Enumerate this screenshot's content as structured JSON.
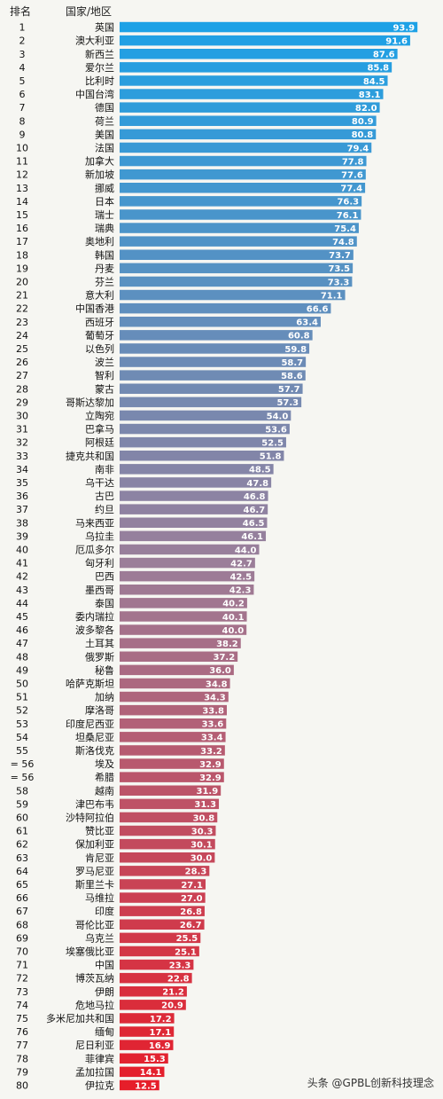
{
  "chart_data": {
    "type": "bar",
    "orientation": "horizontal",
    "header": {
      "rank": "排名",
      "country": "国家/地区"
    },
    "xlim": [
      0,
      100
    ],
    "colors": {
      "top": "#1da1e6",
      "middle": "#9a7f9a",
      "bottom": "#e61e2a"
    },
    "rows": [
      {
        "rank": "1",
        "name": "英国",
        "value": 93.9,
        "label": "93.9"
      },
      {
        "rank": "2",
        "name": "澳大利亚",
        "value": 91.6,
        "label": "91.6"
      },
      {
        "rank": "3",
        "name": "新西兰",
        "value": 87.6,
        "label": "87.6"
      },
      {
        "rank": "4",
        "name": "爱尔兰",
        "value": 85.8,
        "label": "85.8"
      },
      {
        "rank": "5",
        "name": "比利时",
        "value": 84.5,
        "label": "84.5"
      },
      {
        "rank": "6",
        "name": "中国台湾",
        "value": 83.1,
        "label": "83.1"
      },
      {
        "rank": "7",
        "name": "德国",
        "value": 82.0,
        "label": "82.0"
      },
      {
        "rank": "8",
        "name": "荷兰",
        "value": 80.9,
        "label": "80.9"
      },
      {
        "rank": "9",
        "name": "美国",
        "value": 80.8,
        "label": "80.8"
      },
      {
        "rank": "10",
        "name": "法国",
        "value": 79.4,
        "label": "79.4"
      },
      {
        "rank": "11",
        "name": "加拿大",
        "value": 77.8,
        "label": "77.8"
      },
      {
        "rank": "12",
        "name": "新加坡",
        "value": 77.6,
        "label": "77.6"
      },
      {
        "rank": "13",
        "name": "挪威",
        "value": 77.4,
        "label": "77.4"
      },
      {
        "rank": "14",
        "name": "日本",
        "value": 76.3,
        "label": "76.3"
      },
      {
        "rank": "15",
        "name": "瑞士",
        "value": 76.1,
        "label": "76.1"
      },
      {
        "rank": "16",
        "name": "瑞典",
        "value": 75.4,
        "label": "75.4"
      },
      {
        "rank": "17",
        "name": "奥地利",
        "value": 74.8,
        "label": "74.8"
      },
      {
        "rank": "18",
        "name": "韩国",
        "value": 73.7,
        "label": "73.7"
      },
      {
        "rank": "19",
        "name": "丹麦",
        "value": 73.5,
        "label": "73.5"
      },
      {
        "rank": "20",
        "name": "芬兰",
        "value": 73.3,
        "label": "73.3"
      },
      {
        "rank": "21",
        "name": "意大利",
        "value": 71.1,
        "label": "71.1"
      },
      {
        "rank": "22",
        "name": "中国香港",
        "value": 66.6,
        "label": "66.6"
      },
      {
        "rank": "23",
        "name": "西班牙",
        "value": 63.4,
        "label": "63.4"
      },
      {
        "rank": "24",
        "name": "葡萄牙",
        "value": 60.8,
        "label": "60.8"
      },
      {
        "rank": "25",
        "name": "以色列",
        "value": 59.8,
        "label": "59.8"
      },
      {
        "rank": "26",
        "name": "波兰",
        "value": 58.7,
        "label": "58.7"
      },
      {
        "rank": "27",
        "name": "智利",
        "value": 58.6,
        "label": "58.6"
      },
      {
        "rank": "28",
        "name": "蒙古",
        "value": 57.7,
        "label": "57.7"
      },
      {
        "rank": "29",
        "name": "哥斯达黎加",
        "value": 57.3,
        "label": "57.3"
      },
      {
        "rank": "30",
        "name": "立陶宛",
        "value": 54.0,
        "label": "54.0"
      },
      {
        "rank": "31",
        "name": "巴拿马",
        "value": 53.6,
        "label": "53.6"
      },
      {
        "rank": "32",
        "name": "阿根廷",
        "value": 52.5,
        "label": "52.5"
      },
      {
        "rank": "33",
        "name": "捷克共和国",
        "value": 51.8,
        "label": "51.8"
      },
      {
        "rank": "34",
        "name": "南非",
        "value": 48.5,
        "label": "48.5"
      },
      {
        "rank": "35",
        "name": "乌干达",
        "value": 47.8,
        "label": "47.8"
      },
      {
        "rank": "36",
        "name": "古巴",
        "value": 46.8,
        "label": "46.8"
      },
      {
        "rank": "37",
        "name": "约旦",
        "value": 46.7,
        "label": "46.7"
      },
      {
        "rank": "38",
        "name": "马来西亚",
        "value": 46.5,
        "label": "46.5"
      },
      {
        "rank": "39",
        "name": "乌拉圭",
        "value": 46.1,
        "label": "46.1"
      },
      {
        "rank": "40",
        "name": "厄瓜多尔",
        "value": 44.0,
        "label": "44.0"
      },
      {
        "rank": "41",
        "name": "匈牙利",
        "value": 42.7,
        "label": "42.7"
      },
      {
        "rank": "42",
        "name": "巴西",
        "value": 42.5,
        "label": "42.5"
      },
      {
        "rank": "43",
        "name": "墨西哥",
        "value": 42.3,
        "label": "42.3"
      },
      {
        "rank": "44",
        "name": "泰国",
        "value": 40.2,
        "label": "40.2"
      },
      {
        "rank": "45",
        "name": "委内瑞拉",
        "value": 40.1,
        "label": "40.1"
      },
      {
        "rank": "46",
        "name": "波多黎各",
        "value": 40.0,
        "label": "40.0"
      },
      {
        "rank": "47",
        "name": "土耳其",
        "value": 38.2,
        "label": "38.2"
      },
      {
        "rank": "48",
        "name": "俄罗斯",
        "value": 37.2,
        "label": "37.2"
      },
      {
        "rank": "49",
        "name": "秘鲁",
        "value": 36.0,
        "label": "36.0"
      },
      {
        "rank": "50",
        "name": "哈萨克斯坦",
        "value": 34.8,
        "label": "34.8"
      },
      {
        "rank": "51",
        "name": "加纳",
        "value": 34.3,
        "label": "34.3"
      },
      {
        "rank": "52",
        "name": "摩洛哥",
        "value": 33.8,
        "label": "33.8"
      },
      {
        "rank": "53",
        "name": "印度尼西亚",
        "value": 33.6,
        "label": "33.6"
      },
      {
        "rank": "54",
        "name": "坦桑尼亚",
        "value": 33.4,
        "label": "33.4"
      },
      {
        "rank": "55",
        "name": "斯洛伐克",
        "value": 33.2,
        "label": "33.2"
      },
      {
        "rank": "= 56",
        "name": "埃及",
        "value": 32.9,
        "label": "32.9"
      },
      {
        "rank": "= 56",
        "name": "希腊",
        "value": 32.9,
        "label": "32.9"
      },
      {
        "rank": "58",
        "name": "越南",
        "value": 31.9,
        "label": "31.9"
      },
      {
        "rank": "59",
        "name": "津巴布韦",
        "value": 31.3,
        "label": "31.3"
      },
      {
        "rank": "60",
        "name": "沙特阿拉伯",
        "value": 30.8,
        "label": "30.8"
      },
      {
        "rank": "61",
        "name": "赞比亚",
        "value": 30.3,
        "label": "30.3"
      },
      {
        "rank": "62",
        "name": "保加利亚",
        "value": 30.1,
        "label": "30.1"
      },
      {
        "rank": "63",
        "name": "肯尼亚",
        "value": 30.0,
        "label": "30.0"
      },
      {
        "rank": "64",
        "name": "罗马尼亚",
        "value": 28.3,
        "label": "28.3"
      },
      {
        "rank": "65",
        "name": "斯里兰卡",
        "value": 27.1,
        "label": "27.1"
      },
      {
        "rank": "66",
        "name": "马维拉",
        "value": 27.0,
        "label": "27.0"
      },
      {
        "rank": "67",
        "name": "印度",
        "value": 26.8,
        "label": "26.8"
      },
      {
        "rank": "68",
        "name": "哥伦比亚",
        "value": 26.7,
        "label": "26.7"
      },
      {
        "rank": "69",
        "name": "乌克兰",
        "value": 25.5,
        "label": "25.5"
      },
      {
        "rank": "70",
        "name": "埃塞俄比亚",
        "value": 25.1,
        "label": "25.1"
      },
      {
        "rank": "71",
        "name": "中国",
        "value": 23.3,
        "label": "23.3"
      },
      {
        "rank": "72",
        "name": "博茨瓦纳",
        "value": 22.8,
        "label": "22.8"
      },
      {
        "rank": "73",
        "name": "伊朗",
        "value": 21.2,
        "label": "21.2"
      },
      {
        "rank": "74",
        "name": "危地马拉",
        "value": 20.9,
        "label": "20.9"
      },
      {
        "rank": "75",
        "name": "多米尼加共和国",
        "value": 17.2,
        "label": "17.2"
      },
      {
        "rank": "76",
        "name": "缅甸",
        "value": 17.1,
        "label": "17.1"
      },
      {
        "rank": "77",
        "name": "尼日利亚",
        "value": 16.9,
        "label": "16.9"
      },
      {
        "rank": "78",
        "name": "菲律宾",
        "value": 15.3,
        "label": "15.3"
      },
      {
        "rank": "79",
        "name": "孟加拉国",
        "value": 14.1,
        "label": "14.1"
      },
      {
        "rank": "80",
        "name": "伊拉克",
        "value": 12.5,
        "label": "12.5"
      }
    ]
  },
  "watermark": "头条 @GPBL创新科技理念"
}
